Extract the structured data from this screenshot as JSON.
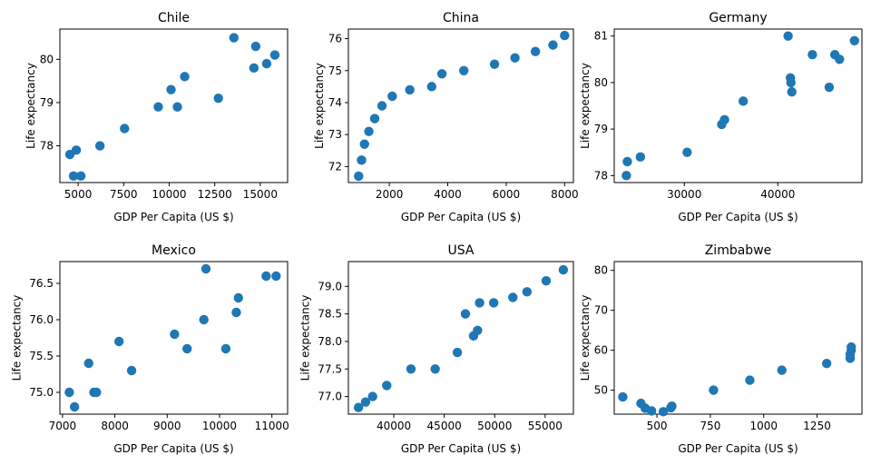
{
  "chart_data": [
    {
      "type": "scatter",
      "title": "Chile",
      "xlabel": "GDP Per Capita (US $)",
      "ylabel": "Life expectancy",
      "xlim": [
        4000,
        16500
      ],
      "ylim": [
        77.15,
        80.7
      ],
      "xticks": [
        5000,
        7500,
        10000,
        12500,
        15000
      ],
      "xtick_labels": [
        "5000",
        "7500",
        "10000",
        "12500",
        "15000"
      ],
      "yticks": [
        78,
        79,
        80
      ],
      "ytick_labels": [
        "78",
        "79",
        "80"
      ],
      "color": "#1f77b4",
      "points": [
        {
          "x": 4550,
          "y": 77.8
        },
        {
          "x": 4750,
          "y": 77.3
        },
        {
          "x": 4900,
          "y": 77.9
        },
        {
          "x": 5150,
          "y": 77.3
        },
        {
          "x": 6200,
          "y": 78.0
        },
        {
          "x": 7550,
          "y": 78.4
        },
        {
          "x": 9400,
          "y": 78.9
        },
        {
          "x": 10100,
          "y": 79.3
        },
        {
          "x": 10450,
          "y": 78.9
        },
        {
          "x": 10850,
          "y": 79.6
        },
        {
          "x": 12700,
          "y": 79.1
        },
        {
          "x": 13550,
          "y": 80.5
        },
        {
          "x": 14650,
          "y": 79.8
        },
        {
          "x": 14750,
          "y": 80.3
        },
        {
          "x": 15350,
          "y": 79.9
        },
        {
          "x": 15800,
          "y": 80.1
        }
      ]
    },
    {
      "type": "scatter",
      "title": "China",
      "xlabel": "GDP Per Capita (US $)",
      "ylabel": "Life expectancy",
      "xlim": [
        600,
        8300
      ],
      "ylim": [
        71.5,
        76.3
      ],
      "xticks": [
        2000,
        4000,
        6000,
        8000
      ],
      "xtick_labels": [
        "2000",
        "4000",
        "6000",
        "8000"
      ],
      "yticks": [
        72,
        73,
        74,
        75,
        76
      ],
      "ytick_labels": [
        "72",
        "73",
        "74",
        "75",
        "76"
      ],
      "color": "#1f77b4",
      "points": [
        {
          "x": 950,
          "y": 71.7
        },
        {
          "x": 1050,
          "y": 72.2
        },
        {
          "x": 1150,
          "y": 72.7
        },
        {
          "x": 1300,
          "y": 73.1
        },
        {
          "x": 1500,
          "y": 73.5
        },
        {
          "x": 1750,
          "y": 73.9
        },
        {
          "x": 2100,
          "y": 74.2
        },
        {
          "x": 2700,
          "y": 74.4
        },
        {
          "x": 3450,
          "y": 74.5
        },
        {
          "x": 3800,
          "y": 74.9
        },
        {
          "x": 4550,
          "y": 75.0
        },
        {
          "x": 5600,
          "y": 75.2
        },
        {
          "x": 6300,
          "y": 75.4
        },
        {
          "x": 7000,
          "y": 75.6
        },
        {
          "x": 7600,
          "y": 75.8
        },
        {
          "x": 8000,
          "y": 76.1
        }
      ]
    },
    {
      "type": "scatter",
      "title": "Germany",
      "xlabel": "GDP Per Capita (US $)",
      "ylabel": "Life expectancy",
      "xlim": [
        22500,
        49000
      ],
      "ylim": [
        77.85,
        81.15
      ],
      "xticks": [
        30000,
        40000
      ],
      "xtick_labels": [
        "30000",
        "40000"
      ],
      "yticks": [
        78,
        79,
        80,
        81
      ],
      "ytick_labels": [
        "78",
        "79",
        "80",
        "81"
      ],
      "color": "#1f77b4",
      "points": [
        {
          "x": 23800,
          "y": 78.0
        },
        {
          "x": 23900,
          "y": 78.3
        },
        {
          "x": 25300,
          "y": 78.4
        },
        {
          "x": 30300,
          "y": 78.5
        },
        {
          "x": 34000,
          "y": 79.1
        },
        {
          "x": 34300,
          "y": 79.2
        },
        {
          "x": 36300,
          "y": 79.6
        },
        {
          "x": 41500,
          "y": 79.8
        },
        {
          "x": 41400,
          "y": 80.0
        },
        {
          "x": 41350,
          "y": 80.1
        },
        {
          "x": 41100,
          "y": 81.0
        },
        {
          "x": 43700,
          "y": 80.6
        },
        {
          "x": 45500,
          "y": 79.9
        },
        {
          "x": 46100,
          "y": 80.6
        },
        {
          "x": 46600,
          "y": 80.5
        },
        {
          "x": 48200,
          "y": 80.9
        }
      ]
    },
    {
      "type": "scatter",
      "title": "Mexico",
      "xlabel": "GDP Per Capita (US $)",
      "ylabel": "Life expectancy",
      "xlim": [
        6950,
        11300
      ],
      "ylim": [
        74.7,
        76.8
      ],
      "xticks": [
        7000,
        8000,
        9000,
        10000,
        11000
      ],
      "xtick_labels": [
        "7000",
        "8000",
        "9000",
        "10000",
        "11000"
      ],
      "yticks": [
        75.0,
        75.5,
        76.0,
        76.5
      ],
      "ytick_labels": [
        "75.0",
        "75.5",
        "76.0",
        "76.5"
      ],
      "color": "#1f77b4",
      "points": [
        {
          "x": 7130,
          "y": 75.0
        },
        {
          "x": 7230,
          "y": 74.8
        },
        {
          "x": 7500,
          "y": 75.4
        },
        {
          "x": 7600,
          "y": 75.0
        },
        {
          "x": 7650,
          "y": 75.0
        },
        {
          "x": 8080,
          "y": 75.7
        },
        {
          "x": 8320,
          "y": 75.3
        },
        {
          "x": 9140,
          "y": 75.8
        },
        {
          "x": 9380,
          "y": 75.6
        },
        {
          "x": 9700,
          "y": 76.0
        },
        {
          "x": 9740,
          "y": 76.7
        },
        {
          "x": 10120,
          "y": 75.6
        },
        {
          "x": 10320,
          "y": 76.1
        },
        {
          "x": 10360,
          "y": 76.3
        },
        {
          "x": 10890,
          "y": 76.6
        },
        {
          "x": 11080,
          "y": 76.6
        }
      ]
    },
    {
      "type": "scatter",
      "title": "USA",
      "xlabel": "GDP Per Capita (US $)",
      "ylabel": "Life expectancy",
      "xlim": [
        35500,
        57800
      ],
      "ylim": [
        76.68,
        79.45
      ],
      "xticks": [
        40000,
        45000,
        50000,
        55000
      ],
      "xtick_labels": [
        "40000",
        "45000",
        "50000",
        "55000"
      ],
      "yticks": [
        77.0,
        77.5,
        78.0,
        78.5,
        79.0
      ],
      "ytick_labels": [
        "77.0",
        "77.5",
        "78.0",
        "78.5",
        "79.0"
      ],
      "color": "#1f77b4",
      "points": [
        {
          "x": 36500,
          "y": 76.8
        },
        {
          "x": 37200,
          "y": 76.9
        },
        {
          "x": 37900,
          "y": 77.0
        },
        {
          "x": 39300,
          "y": 77.2
        },
        {
          "x": 41700,
          "y": 77.5
        },
        {
          "x": 44100,
          "y": 77.5
        },
        {
          "x": 46300,
          "y": 77.8
        },
        {
          "x": 47100,
          "y": 78.5
        },
        {
          "x": 47900,
          "y": 78.1
        },
        {
          "x": 48300,
          "y": 78.2
        },
        {
          "x": 48500,
          "y": 78.7
        },
        {
          "x": 49900,
          "y": 78.7
        },
        {
          "x": 51800,
          "y": 78.8
        },
        {
          "x": 53200,
          "y": 78.9
        },
        {
          "x": 55100,
          "y": 79.1
        },
        {
          "x": 56800,
          "y": 79.3
        }
      ]
    },
    {
      "type": "scatter",
      "title": "Zimbabwe",
      "xlabel": "GDP Per Capita (US $)",
      "ylabel": "Life expectancy",
      "xlim": [
        300,
        1460
      ],
      "ylim": [
        44,
        82.2
      ],
      "xticks": [
        500,
        750,
        1000,
        1250
      ],
      "xtick_labels": [
        "500",
        "750",
        "1000",
        "1250"
      ],
      "yticks": [
        50,
        60,
        70,
        80
      ],
      "ytick_labels": [
        "50",
        "60",
        "70",
        "80"
      ],
      "color": "#1f77b4",
      "points": [
        {
          "x": 340,
          "y": 48.3
        },
        {
          "x": 425,
          "y": 46.7
        },
        {
          "x": 445,
          "y": 45.5
        },
        {
          "x": 475,
          "y": 44.8
        },
        {
          "x": 530,
          "y": 44.6
        },
        {
          "x": 565,
          "y": 45.6
        },
        {
          "x": 570,
          "y": 46.0
        },
        {
          "x": 765,
          "y": 50.0
        },
        {
          "x": 935,
          "y": 52.5
        },
        {
          "x": 1085,
          "y": 55.0
        },
        {
          "x": 1295,
          "y": 56.7
        },
        {
          "x": 1405,
          "y": 58.0
        },
        {
          "x": 1405,
          "y": 59.0
        },
        {
          "x": 1410,
          "y": 60.0
        },
        {
          "x": 1410,
          "y": 60.8
        }
      ]
    }
  ]
}
